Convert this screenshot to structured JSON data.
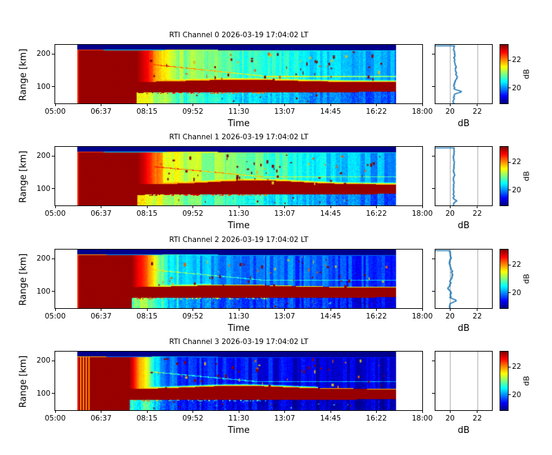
{
  "labels": {
    "y_axis": "Range [km]",
    "x_axis": "Time",
    "profile_x_axis": "dB",
    "colorbar": "dB"
  },
  "x_ticks": [
    "05:00",
    "06:37",
    "08:15",
    "09:52",
    "11:30",
    "13:07",
    "14:45",
    "16:22",
    "18:00"
  ],
  "y_ticks": [
    "200",
    "100"
  ],
  "profile_x_ticks": [
    "20",
    "22"
  ],
  "colorbar_ticks": [
    "22",
    "20"
  ],
  "colors": {
    "line": "#1f77b4",
    "grid": "#b0b0b0",
    "spine": "#000000",
    "background": "#ffffff"
  },
  "chart_data": {
    "type": "heatmap",
    "description": "Four-channel RTI (Range-Time-Intensity) radar plot; each row has an RTI heatmap (jet colormap), a mean dB-vs-range profile panel with vertical gridlines, and a dB colorbar.",
    "time_axis": {
      "label": "Time",
      "range_hours": [
        5,
        18
      ],
      "tick_labels": [
        "05:00",
        "06:37",
        "08:15",
        "09:52",
        "11:30",
        "13:07",
        "14:45",
        "16:22",
        "18:00"
      ],
      "data_start": "05:47",
      "data_end": "17:04"
    },
    "range_axis": {
      "label": "Range [km]",
      "tick_values": [
        200,
        100
      ],
      "limits_km": [
        49,
        228
      ]
    },
    "intensity": {
      "label": "dB",
      "limits_db": [
        18.92,
        23.08
      ],
      "colormap": "jet",
      "colorbar_ticks": [
        22,
        20
      ]
    },
    "profile_axis": {
      "label": "dB",
      "tick_values": [
        20,
        22
      ],
      "limits": [
        18.92,
        23.08
      ],
      "grid": true
    },
    "channels": [
      {
        "title": "RTI Channel 0 2026-03-19 17:04:02 LT",
        "heatmap": {
          "seed": 7,
          "data_start_hour": 5.78,
          "data_end_hour": 17.07,
          "saturated_red_until_hour": 7.88,
          "transition_hours": 1.0,
          "background_db_vs_hour": [
            [
              8.4,
              21.7
            ],
            [
              9.2,
              21.2
            ],
            [
              10.2,
              20.9
            ],
            [
              12.0,
              20.7
            ],
            [
              13.5,
              20.45
            ],
            [
              15.0,
              20.2
            ],
            [
              17.1,
              20.05
            ]
          ],
          "top_navy_band_km": 214.5,
          "topline_orange_until_hour": 6.7,
          "topline_hi_db": 22.3,
          "topline_lo_db": 20.4,
          "clutter_band_bottom_km": 84,
          "clutter_band_top_km": 115,
          "band_hump": {
            "amp_km": 7,
            "center_hour": 11.6,
            "width_hours": 2.4
          },
          "band_glow_until_hour": 17.1,
          "band_edge_db": 21.9,
          "descending_trace": {
            "start_km": 170,
            "slope_km_per_hour": 9,
            "min_km": 132,
            "brightness_db": 0.85
          },
          "column_noise_db": 0.22,
          "below_band_db_drop": 0.35,
          "speckle_count": 52,
          "left_edge_stripes": false
        },
        "profile": {
          "present": true,
          "base_db": 20.32,
          "noise_db": 0.07,
          "seed": 3,
          "bumps": [
            {
              "a": 0.5,
              "p": 0.8,
              "w": 0.028
            },
            {
              "a": 0.1,
              "p": 0.5,
              "w": 0.1
            }
          ]
        }
      },
      {
        "title": "RTI Channel 1 2026-03-19 17:04:02 LT",
        "heatmap": {
          "seed": 13,
          "data_start_hour": 5.78,
          "data_end_hour": 17.07,
          "saturated_red_until_hour": 7.9,
          "transition_hours": 1.0,
          "background_db_vs_hour": [
            [
              8.4,
              21.8
            ],
            [
              9.5,
              21.3
            ],
            [
              11.0,
              21.0
            ],
            [
              12.5,
              20.8
            ],
            [
              14.0,
              20.5
            ],
            [
              15.5,
              20.2
            ],
            [
              17.1,
              20.05
            ]
          ],
          "top_navy_band_km": 214.5,
          "topline_orange_until_hour": 6.7,
          "topline_hi_db": 22.3,
          "topline_lo_db": 20.4,
          "clutter_band_bottom_km": 83,
          "clutter_band_top_km": 114,
          "band_hump": {
            "amp_km": 12,
            "center_hour": 12.1,
            "width_hours": 2.2
          },
          "band_glow_until_hour": 17.1,
          "band_edge_db": 21.9,
          "descending_trace": {
            "start_km": 170,
            "slope_km_per_hour": 8,
            "min_km": 138,
            "brightness_db": 0.8
          },
          "column_noise_db": 0.22,
          "below_band_db_drop": 0.3,
          "speckle_count": 55,
          "left_edge_stripes": false
        },
        "profile": {
          "present": true,
          "base_db": 20.28,
          "noise_db": 0.06,
          "seed": 5,
          "bumps": [
            {
              "a": 0.18,
              "p": 0.92,
              "w": 0.025
            }
          ]
        }
      },
      {
        "title": "RTI Channel 2 2026-03-19 17:04:02 LT",
        "heatmap": {
          "seed": 29,
          "data_start_hour": 5.78,
          "data_end_hour": 17.07,
          "saturated_red_until_hour": 7.7,
          "transition_hours": 1.1,
          "background_db_vs_hour": [
            [
              8.4,
              21.2
            ],
            [
              9.0,
              20.6
            ],
            [
              10.0,
              20.15
            ],
            [
              11.5,
              19.95
            ],
            [
              13.5,
              19.8
            ],
            [
              15.5,
              19.65
            ],
            [
              17.1,
              19.55
            ]
          ],
          "top_navy_band_km": 214.5,
          "topline_orange_until_hour": 6.8,
          "topline_hi_db": 21.9,
          "topline_lo_db": 20.1,
          "clutter_band_bottom_km": 81,
          "clutter_band_top_km": 113,
          "band_hump": {
            "amp_km": 7,
            "center_hour": 11.3,
            "width_hours": 2.6
          },
          "band_glow_until_hour": 10.5,
          "band_edge_db": 21.4,
          "descending_trace": {
            "start_km": 168,
            "slope_km_per_hour": 8,
            "min_km": 136,
            "brightness_db": 0.75
          },
          "column_noise_db": 0.3,
          "below_band_db_drop": 0.2,
          "speckle_count": 46,
          "left_edge_stripes": false
        },
        "profile": {
          "present": true,
          "base_db": 19.98,
          "noise_db": 0.1,
          "seed": 9,
          "bumps": [
            {
              "a": 0.34,
              "p": 0.875,
              "w": 0.03
            },
            {
              "a": 0.08,
              "p": 0.38,
              "w": 0.12
            }
          ]
        }
      },
      {
        "title": "RTI Channel 3 2026-03-19 17:04:02 LT",
        "heatmap": {
          "seed": 41,
          "data_start_hour": 5.78,
          "data_end_hour": 17.07,
          "saturated_red_until_hour": 7.62,
          "transition_hours": 0.8,
          "background_db_vs_hour": [
            [
              8.35,
              20.7
            ],
            [
              8.9,
              19.95
            ],
            [
              10.0,
              19.6
            ],
            [
              12.0,
              19.45
            ],
            [
              14.0,
              19.3
            ],
            [
              17.1,
              19.25
            ]
          ],
          "top_navy_band_km": 214.5,
          "topline_orange_until_hour": 6.8,
          "topline_hi_db": 21.8,
          "topline_lo_db": 19.9,
          "clutter_band_bottom_km": 82,
          "clutter_band_top_km": 114,
          "band_hump": {
            "amp_km": 10,
            "center_hour": 11.5,
            "width_hours": 2.4
          },
          "band_glow_until_hour": 14.3,
          "band_edge_db": 21.8,
          "descending_trace": {
            "start_km": 168,
            "slope_km_per_hour": 8,
            "min_km": 137,
            "brightness_db": 0.9
          },
          "column_noise_db": 0.28,
          "below_band_db_drop": 0.1,
          "speckle_count": 50,
          "left_edge_stripes": true
        },
        "profile": {
          "present": false
        }
      }
    ]
  }
}
